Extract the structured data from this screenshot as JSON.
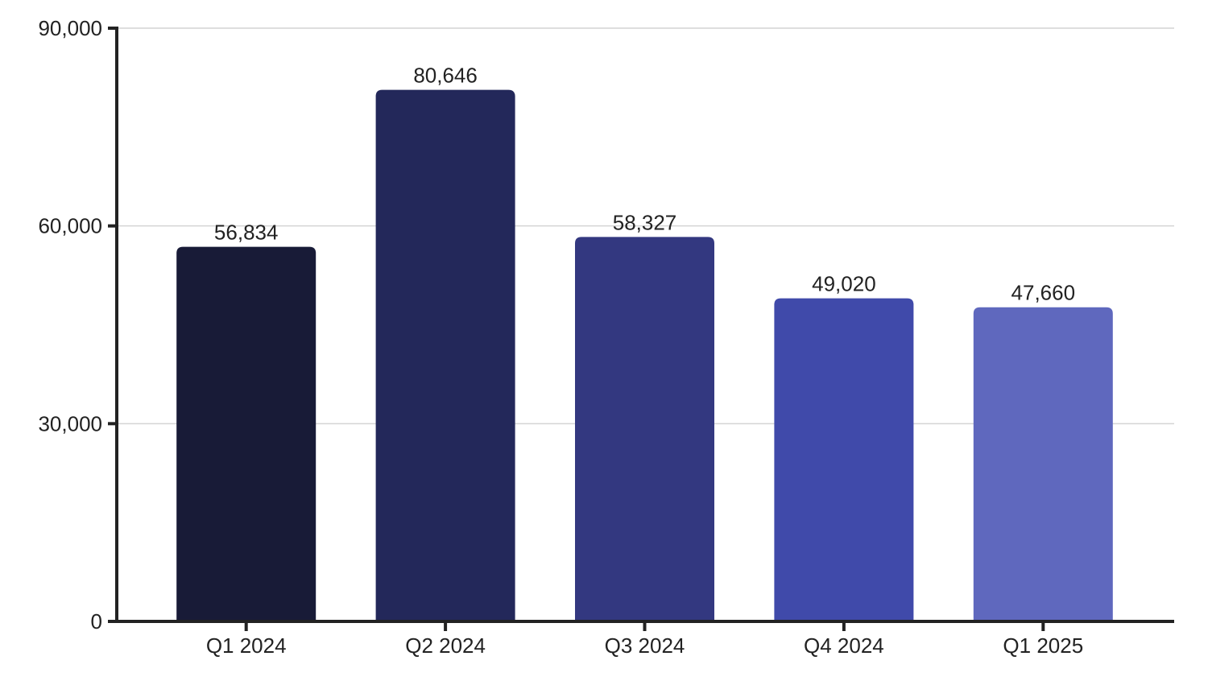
{
  "chart_data": {
    "type": "bar",
    "title": "",
    "xlabel": "",
    "ylabel": "",
    "categories": [
      "Q1 2024",
      "Q2 2024",
      "Q3 2024",
      "Q4 2024",
      "Q1 2025"
    ],
    "values": [
      56834,
      80646,
      58327,
      49020,
      47660
    ],
    "value_labels": [
      "56,834",
      "80,646",
      "58,327",
      "49,020",
      "47,660"
    ],
    "bar_colors": [
      "#181b37",
      "#23285a",
      "#333880",
      "#404aaa",
      "#5f68be"
    ],
    "ylim": [
      0,
      90000
    ],
    "yticks": [
      0,
      30000,
      60000,
      90000
    ],
    "ytick_labels": [
      "0",
      "30,000",
      "60,000",
      "90,000"
    ],
    "grid": true,
    "legend": "none",
    "axis_color": "#222222",
    "grid_color": "#d4d4d4"
  }
}
